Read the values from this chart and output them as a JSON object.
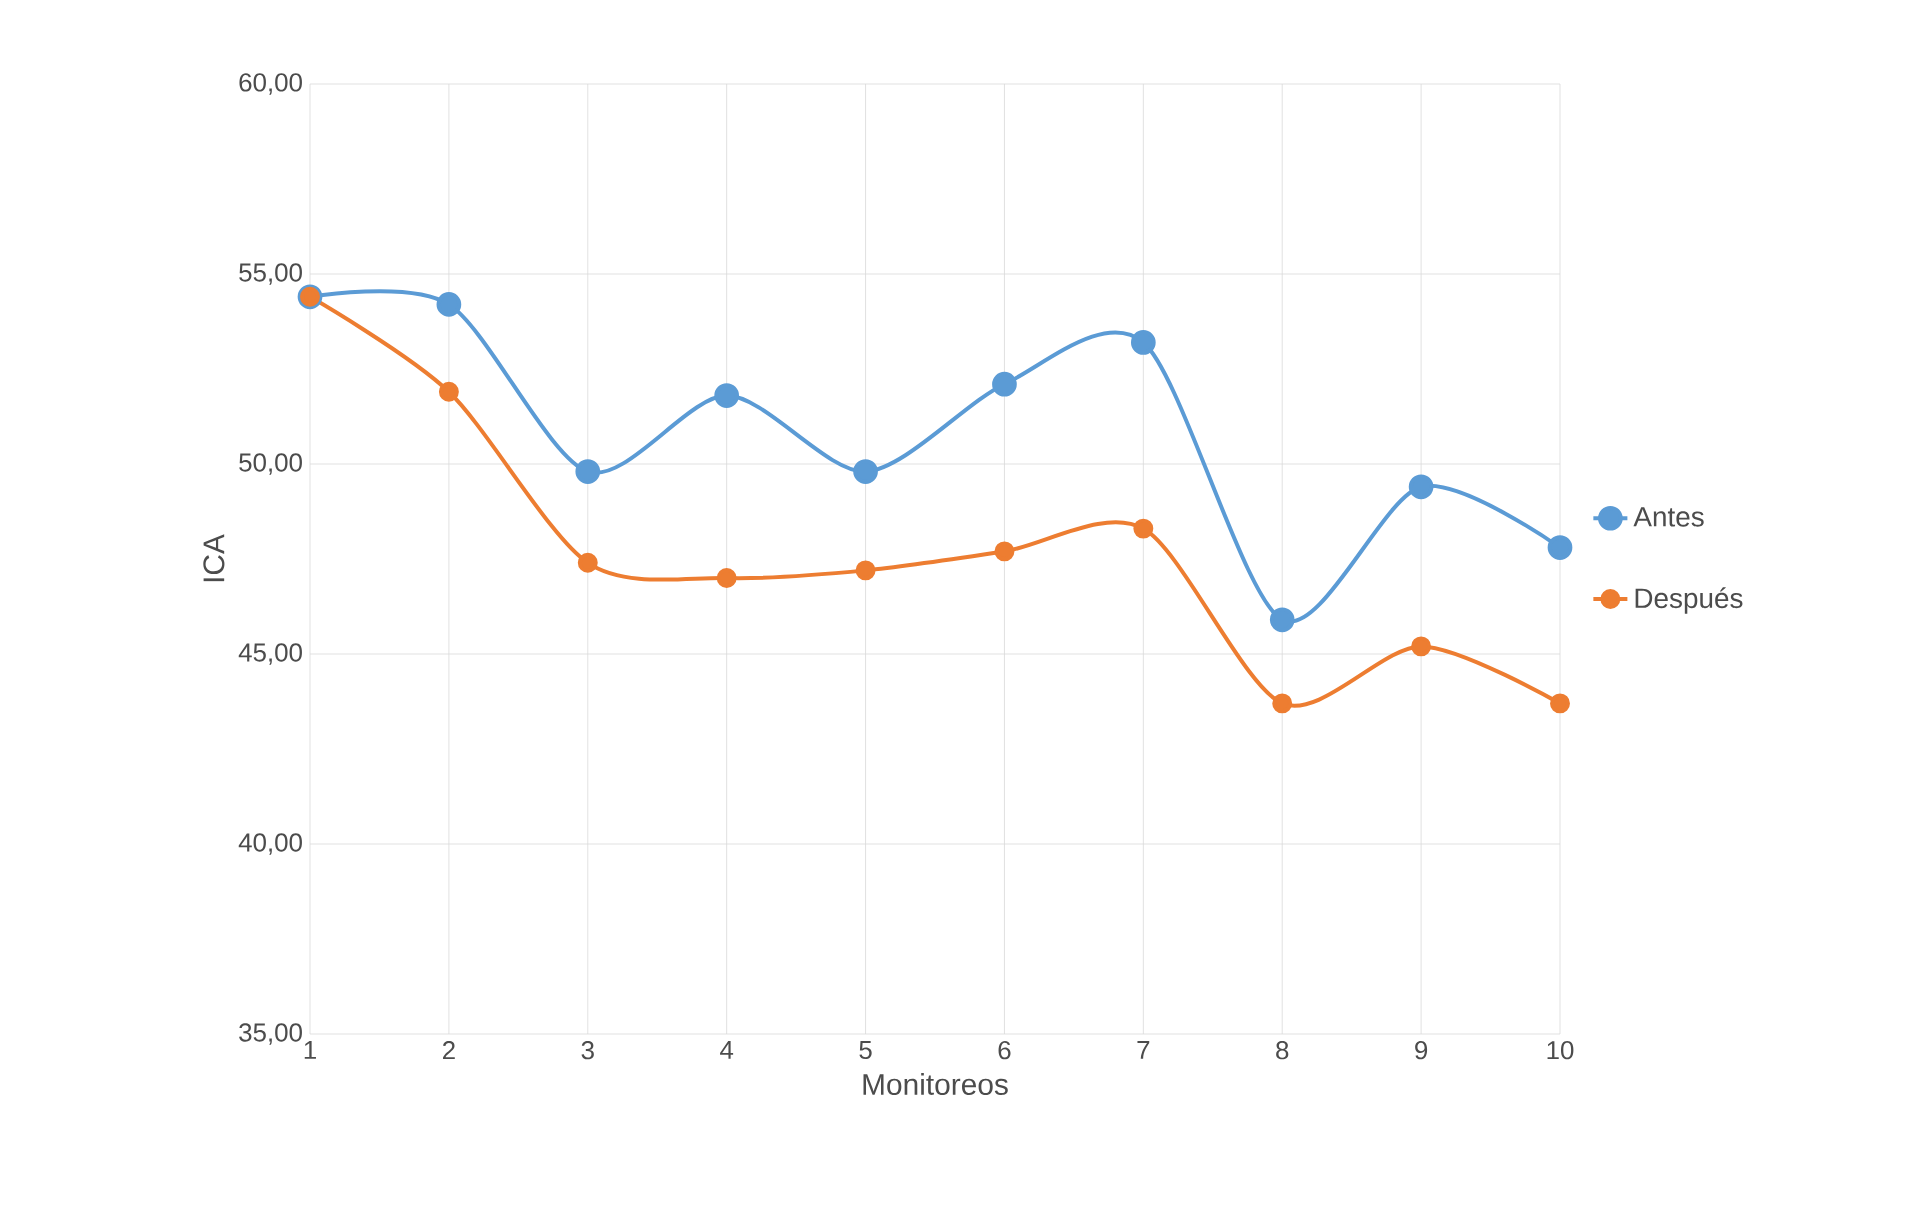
{
  "chart_data": {
    "type": "line",
    "xlabel": "Monitoreos",
    "ylabel": "ICA",
    "x": [
      1,
      2,
      3,
      4,
      5,
      6,
      7,
      8,
      9,
      10
    ],
    "series": [
      {
        "name": "Antes",
        "color": "#5b9bd5",
        "values": [
          54.4,
          54.2,
          49.8,
          51.8,
          49.8,
          52.1,
          53.2,
          45.9,
          49.4,
          47.8
        ]
      },
      {
        "name": "Después",
        "color": "#ed7d31",
        "values": [
          54.4,
          51.9,
          47.4,
          47.0,
          47.2,
          47.7,
          48.3,
          43.7,
          45.2,
          43.7
        ]
      }
    ],
    "xlim": [
      1,
      10
    ],
    "xticks": [
      1,
      2,
      3,
      4,
      5,
      6,
      7,
      8,
      9,
      10
    ],
    "ylim": [
      35,
      60
    ],
    "yticks": [
      {
        "value": 35,
        "label": "35,00"
      },
      {
        "value": 40,
        "label": "40,00"
      },
      {
        "value": 45,
        "label": "45,00"
      },
      {
        "value": 50,
        "label": "50,00"
      },
      {
        "value": 55,
        "label": "55,00"
      },
      {
        "value": 60,
        "label": "60,00"
      }
    ],
    "grid": true,
    "legend": "right",
    "marker": "circle",
    "line_style": "solid"
  }
}
